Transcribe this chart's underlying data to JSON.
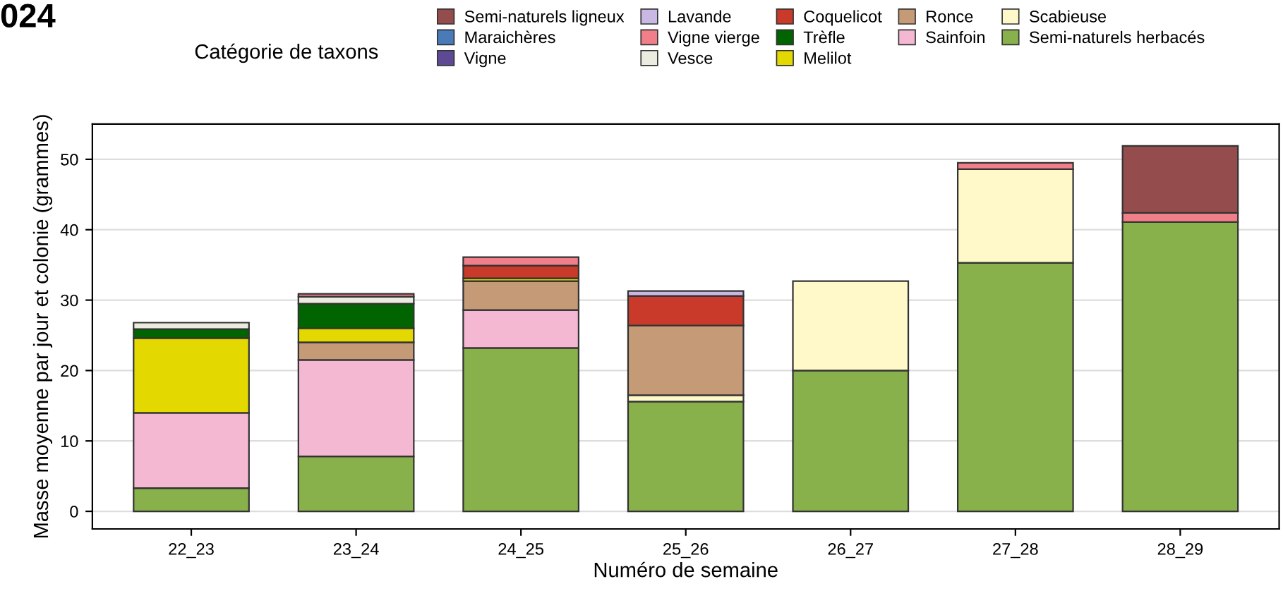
{
  "chart_data": {
    "type": "bar",
    "title": "024",
    "stacked": true,
    "xlabel": "Numéro de semaine",
    "ylabel": "Masse moyenne par jour et colonie (grammes)",
    "legend_title": "Catégorie de taxons",
    "legend": "top",
    "grid": "y",
    "categories": [
      "22_23",
      "23_24",
      "24_25",
      "25_26",
      "26_27",
      "27_28",
      "28_29"
    ],
    "ylim": [
      -2.5,
      55
    ],
    "yticks": [
      0,
      10,
      20,
      30,
      40,
      50
    ],
    "series": [
      {
        "name": "Semi-naturels herbacés",
        "color": "#88b04b",
        "values": [
          3.3,
          7.8,
          23.2,
          15.6,
          20.0,
          35.3,
          41.1
        ]
      },
      {
        "name": "Scabieuse",
        "color": "#fff8c8",
        "values": [
          null,
          null,
          null,
          0.9,
          12.7,
          13.3,
          null
        ]
      },
      {
        "name": "Sainfoin",
        "color": "#f4b8d3",
        "values": [
          10.7,
          13.7,
          5.4,
          null,
          null,
          null,
          null
        ]
      },
      {
        "name": "Ronce",
        "color": "#c59a76",
        "values": [
          null,
          2.5,
          4.1,
          9.9,
          null,
          null,
          null
        ]
      },
      {
        "name": "Melilot",
        "color": "#e3d800",
        "values": [
          10.6,
          2.0,
          0.4,
          null,
          null,
          null,
          null
        ]
      },
      {
        "name": "Trèfle",
        "color": "#006400",
        "values": [
          1.3,
          3.5,
          null,
          null,
          null,
          null,
          null
        ]
      },
      {
        "name": "Coquelicot",
        "color": "#c93a2a",
        "values": [
          null,
          null,
          1.8,
          4.2,
          null,
          null,
          null
        ]
      },
      {
        "name": "Vesce",
        "color": "#ebebe0",
        "values": [
          0.9,
          1.0,
          null,
          null,
          null,
          null,
          null
        ]
      },
      {
        "name": "Vigne vierge",
        "color": "#f07f8a",
        "values": [
          null,
          0.4,
          1.2,
          null,
          null,
          0.9,
          1.3
        ]
      },
      {
        "name": "Lavande",
        "color": "#c9b8e4",
        "values": [
          null,
          null,
          null,
          0.7,
          null,
          null,
          null
        ]
      },
      {
        "name": "Vigne",
        "color": "#5e4a94",
        "values": [
          null,
          null,
          null,
          null,
          null,
          null,
          null
        ]
      },
      {
        "name": "Maraichères",
        "color": "#4a7ab8",
        "values": [
          null,
          null,
          null,
          null,
          null,
          null,
          null
        ]
      },
      {
        "name": "Semi-naturels ligneux",
        "color": "#954c4c",
        "values": [
          null,
          null,
          null,
          null,
          null,
          null,
          9.5
        ]
      }
    ]
  }
}
